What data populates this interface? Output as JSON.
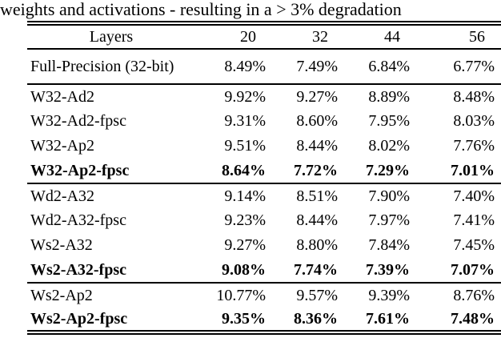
{
  "caption": "weights and activations - resulting in a > 3% degradation",
  "colors": {
    "text": "#000000",
    "background": "#ffffff",
    "rule": "#000000"
  },
  "table": {
    "header": {
      "label": "Layers",
      "columns": [
        "20",
        "32",
        "44",
        "56"
      ]
    },
    "groups": [
      {
        "rows": [
          {
            "label": "Full-Precision (32-bit)",
            "values": [
              "8.49%",
              "7.49%",
              "6.84%",
              "6.77%"
            ],
            "bold": false
          }
        ]
      },
      {
        "rows": [
          {
            "label": "W32-Ad2",
            "values": [
              "9.92%",
              "9.27%",
              "8.89%",
              "8.48%"
            ],
            "bold": false
          },
          {
            "label": "W32-Ad2-fpsc",
            "values": [
              "9.31%",
              "8.60%",
              "7.95%",
              "8.03%"
            ],
            "bold": false
          },
          {
            "label": "W32-Ap2",
            "values": [
              "9.51%",
              "8.44%",
              "8.02%",
              "7.76%"
            ],
            "bold": false
          },
          {
            "label": "W32-Ap2-fpsc",
            "values": [
              "8.64%",
              "7.72%",
              "7.29%",
              "7.01%"
            ],
            "bold": true
          }
        ]
      },
      {
        "rows": [
          {
            "label": "Wd2-A32",
            "values": [
              "9.14%",
              "8.51%",
              "7.90%",
              "7.40%"
            ],
            "bold": false
          },
          {
            "label": "Wd2-A32-fpsc",
            "values": [
              "9.23%",
              "8.44%",
              "7.97%",
              "7.41%"
            ],
            "bold": false
          },
          {
            "label": "Ws2-A32",
            "values": [
              "9.27%",
              "8.80%",
              "7.84%",
              "7.45%"
            ],
            "bold": false
          },
          {
            "label": "Ws2-A32-fpsc",
            "values": [
              "9.08%",
              "7.74%",
              "7.39%",
              "7.07%"
            ],
            "bold": true
          }
        ]
      },
      {
        "rows": [
          {
            "label": "Ws2-Ap2",
            "values": [
              "10.77%",
              "9.57%",
              "9.39%",
              "8.76%"
            ],
            "bold": false
          },
          {
            "label": "Ws2-Ap2-fpsc",
            "values": [
              "9.35%",
              "8.36%",
              "7.61%",
              "7.48%"
            ],
            "bold": true
          }
        ]
      }
    ]
  }
}
